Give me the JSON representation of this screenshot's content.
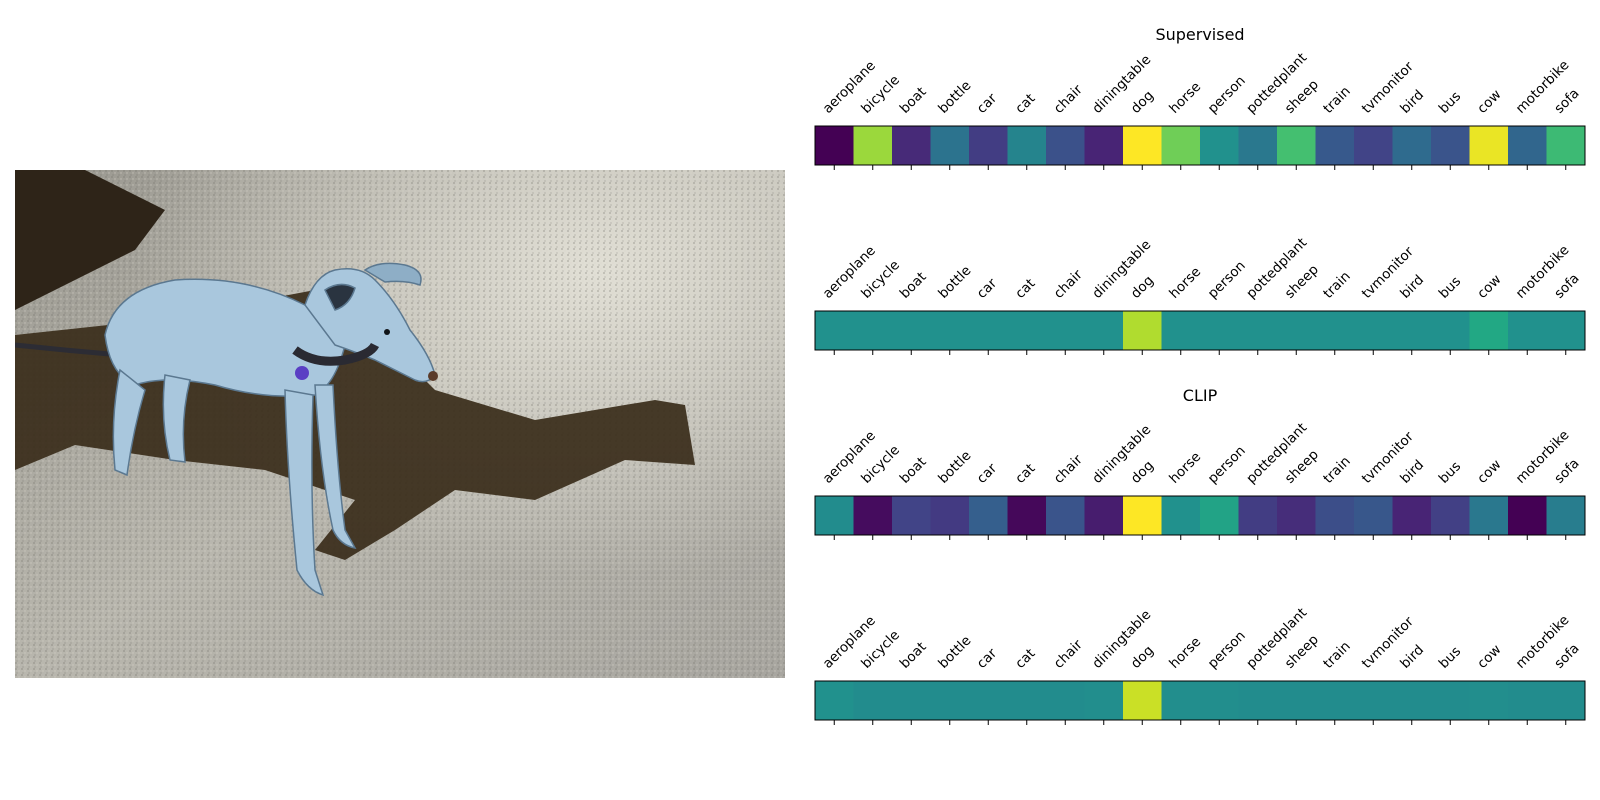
{
  "photo": {
    "subject_icon": "greyhound-dog-on-gravel-photo"
  },
  "chart_data": {
    "type": "heatmap",
    "categories": [
      "aeroplane",
      "bicycle",
      "boat",
      "bottle",
      "car",
      "cat",
      "chair",
      "diningtable",
      "dog",
      "horse",
      "person",
      "pottedplant",
      "sheep",
      "train",
      "tvmonitor",
      "bird",
      "bus",
      "cow",
      "motorbike",
      "sofa"
    ],
    "colormap": "viridis",
    "panels": [
      {
        "title": "Supervised",
        "values": [
          0.0,
          0.85,
          0.12,
          0.38,
          0.18,
          0.45,
          0.25,
          0.1,
          1.0,
          0.78,
          0.5,
          0.4,
          0.7,
          0.28,
          0.2,
          0.35,
          0.26,
          0.97,
          0.33,
          0.68
        ]
      },
      {
        "title": "",
        "values": [
          0.5,
          0.5,
          0.5,
          0.5,
          0.5,
          0.5,
          0.5,
          0.5,
          0.88,
          0.5,
          0.5,
          0.5,
          0.5,
          0.5,
          0.5,
          0.5,
          0.5,
          0.6,
          0.5,
          0.5
        ]
      },
      {
        "title": "CLIP",
        "values": [
          0.48,
          0.03,
          0.2,
          0.17,
          0.3,
          0.02,
          0.26,
          0.08,
          1.0,
          0.5,
          0.58,
          0.18,
          0.13,
          0.24,
          0.27,
          0.1,
          0.19,
          0.4,
          0.0,
          0.42
        ]
      },
      {
        "title": "",
        "values": [
          0.5,
          0.48,
          0.48,
          0.48,
          0.48,
          0.48,
          0.48,
          0.49,
          0.92,
          0.49,
          0.49,
          0.48,
          0.48,
          0.48,
          0.48,
          0.48,
          0.48,
          0.49,
          0.48,
          0.48
        ]
      }
    ]
  }
}
